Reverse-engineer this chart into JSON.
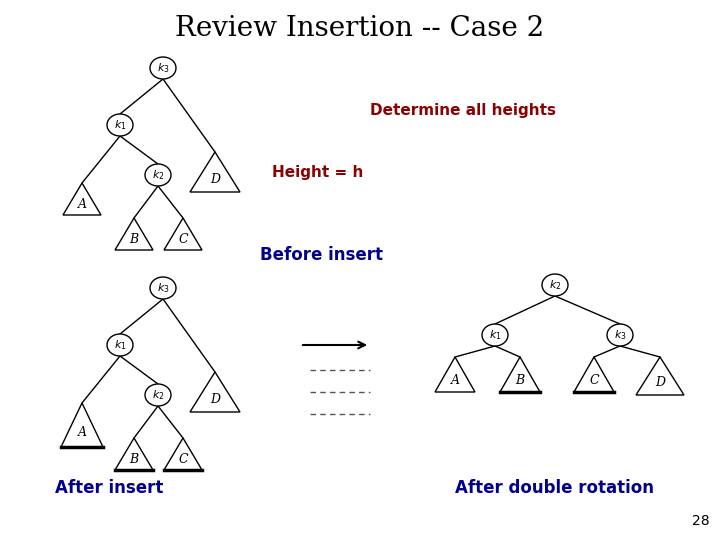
{
  "title": "Review Insertion -- Case 2",
  "title_fontsize": 20,
  "background_color": "#ffffff",
  "text_color_red": "#8B0000",
  "text_color_blue": "#00008B",
  "text_color_black": "#000000",
  "height_label": "Height = h",
  "determine_label": "Determine all heights",
  "before_insert": "Before insert",
  "after_insert": "After insert",
  "after_rotation": "After double rotation",
  "page_number": "28"
}
